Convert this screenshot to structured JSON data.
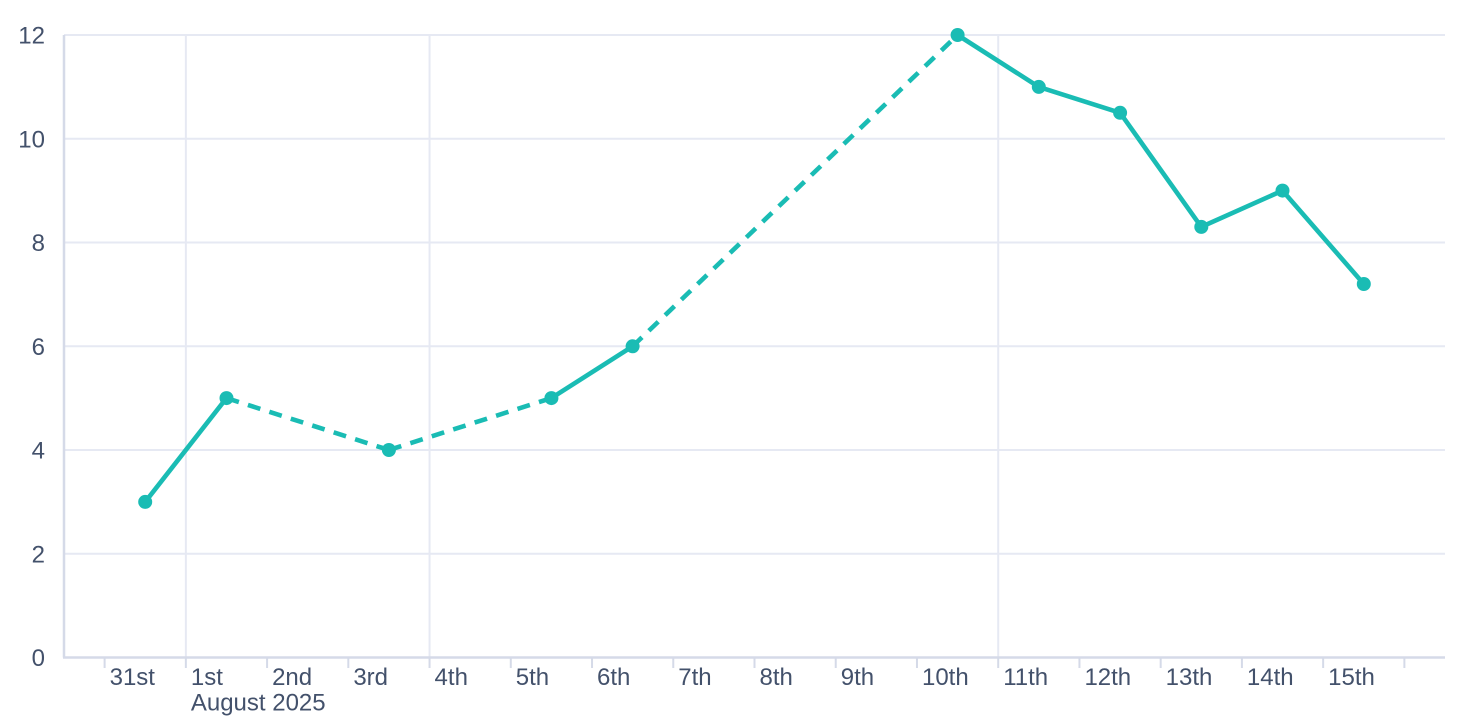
{
  "chart_data": {
    "type": "line",
    "title": "",
    "x_axis": {
      "tick_labels": [
        "31st",
        "1st",
        "2nd",
        "3rd",
        "4th",
        "5th",
        "6th",
        "7th",
        "8th",
        "9th",
        "10th",
        "11th",
        "12th",
        "13th",
        "14th",
        "15th"
      ],
      "secondary_label": "August 2025",
      "secondary_label_anchor_index": 1,
      "total_day_slots": 17
    },
    "y_axis": {
      "tick_labels": [
        "0",
        "2",
        "4",
        "6",
        "8",
        "10",
        "12"
      ],
      "min": 0,
      "max": 12
    },
    "grid": {
      "horizontal_values": [
        2,
        4,
        6,
        8,
        10,
        12
      ],
      "vertical_day_boundaries": [
        1,
        4,
        11
      ]
    },
    "series": [
      {
        "name": "daily-values",
        "marker": "circle",
        "points": [
          {
            "label": "31st",
            "day": 0,
            "value": 3
          },
          {
            "label": "1st",
            "day": 1,
            "value": 5
          },
          {
            "label": "3rd",
            "day": 3,
            "value": 4
          },
          {
            "label": "5th",
            "day": 5,
            "value": 5
          },
          {
            "label": "6th",
            "day": 6,
            "value": 6
          },
          {
            "label": "10th",
            "day": 10,
            "value": 12
          },
          {
            "label": "11th",
            "day": 11,
            "value": 11
          },
          {
            "label": "12th",
            "day": 12,
            "value": 10.5
          },
          {
            "label": "13th",
            "day": 13,
            "value": 8.3
          },
          {
            "label": "14th",
            "day": 14,
            "value": 9
          },
          {
            "label": "15th",
            "day": 15,
            "value": 7.2
          }
        ],
        "segments": [
          {
            "from_day": 0,
            "to_day": 1,
            "style": "solid"
          },
          {
            "from_day": 1,
            "to_day": 3,
            "style": "dashed"
          },
          {
            "from_day": 3,
            "to_day": 5,
            "style": "dashed"
          },
          {
            "from_day": 5,
            "to_day": 6,
            "style": "solid"
          },
          {
            "from_day": 6,
            "to_day": 10,
            "style": "dashed"
          },
          {
            "from_day": 10,
            "to_day": 15,
            "style": "solid"
          }
        ]
      }
    ],
    "colors": {
      "series": "#1abcb4",
      "grid_line": "#e6e9f3",
      "axis_line": "#d5dae8",
      "label_text": "#43516b",
      "background": "#ffffff"
    },
    "legend": {
      "visible": false
    }
  }
}
